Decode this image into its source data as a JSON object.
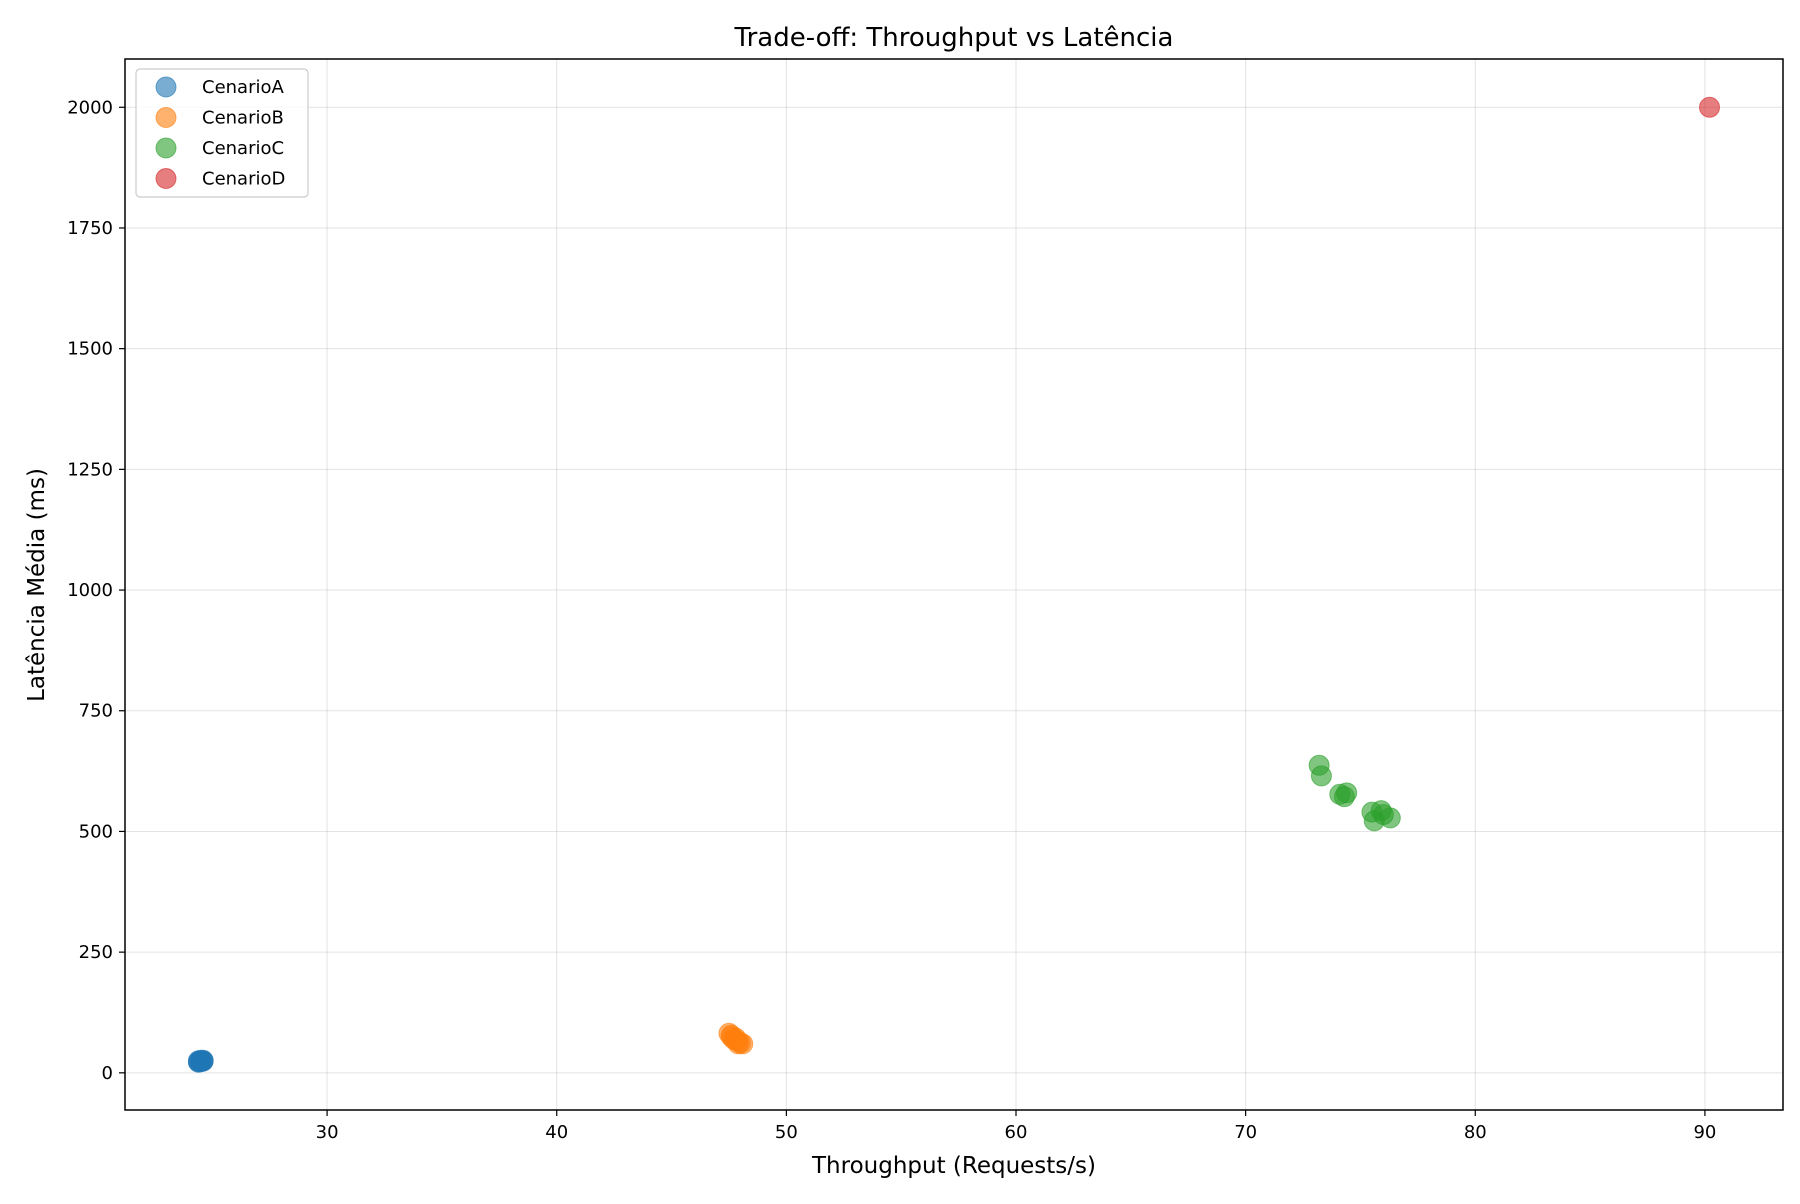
{
  "chart_data": {
    "type": "scatter",
    "title": "Trade-off: Throughput vs Latência",
    "xlabel": "Throughput (Requests/s)",
    "ylabel": "Latência Média (ms)",
    "xlim": [
      21.2,
      93.4
    ],
    "ylim": [
      -77,
      2100
    ],
    "x_ticks": [
      30,
      40,
      50,
      60,
      70,
      80,
      90
    ],
    "y_ticks": [
      0,
      250,
      500,
      750,
      1000,
      1250,
      1500,
      1750,
      2000
    ],
    "grid": true,
    "legend_position": "top-left",
    "series": [
      {
        "name": "CenarioA",
        "color": "#1f77b4",
        "points": [
          {
            "x": 24.4,
            "y": 25
          },
          {
            "x": 24.5,
            "y": 24
          },
          {
            "x": 24.6,
            "y": 26
          },
          {
            "x": 24.5,
            "y": 23
          },
          {
            "x": 24.4,
            "y": 22
          },
          {
            "x": 24.6,
            "y": 24
          },
          {
            "x": 24.5,
            "y": 26
          },
          {
            "x": 24.4,
            "y": 23
          },
          {
            "x": 24.6,
            "y": 25
          },
          {
            "x": 24.5,
            "y": 25
          }
        ]
      },
      {
        "name": "CenarioB",
        "color": "#ff7f0e",
        "points": [
          {
            "x": 47.5,
            "y": 82
          },
          {
            "x": 47.6,
            "y": 75
          },
          {
            "x": 47.8,
            "y": 72
          },
          {
            "x": 47.7,
            "y": 70
          },
          {
            "x": 47.9,
            "y": 65
          },
          {
            "x": 48.1,
            "y": 60
          },
          {
            "x": 47.9,
            "y": 60
          },
          {
            "x": 47.6,
            "y": 78
          },
          {
            "x": 47.8,
            "y": 68
          },
          {
            "x": 48.0,
            "y": 62
          }
        ]
      },
      {
        "name": "CenarioC",
        "color": "#2ca02c",
        "points": [
          {
            "x": 73.2,
            "y": 637
          },
          {
            "x": 73.3,
            "y": 615
          },
          {
            "x": 74.1,
            "y": 577
          },
          {
            "x": 74.4,
            "y": 580
          },
          {
            "x": 74.3,
            "y": 572
          },
          {
            "x": 75.5,
            "y": 540
          },
          {
            "x": 75.6,
            "y": 522
          },
          {
            "x": 75.9,
            "y": 543
          },
          {
            "x": 76.0,
            "y": 535
          },
          {
            "x": 76.3,
            "y": 528
          }
        ]
      },
      {
        "name": "CenarioD",
        "color": "#d62728",
        "points": [
          {
            "x": 90.2,
            "y": 2000
          }
        ]
      }
    ]
  }
}
